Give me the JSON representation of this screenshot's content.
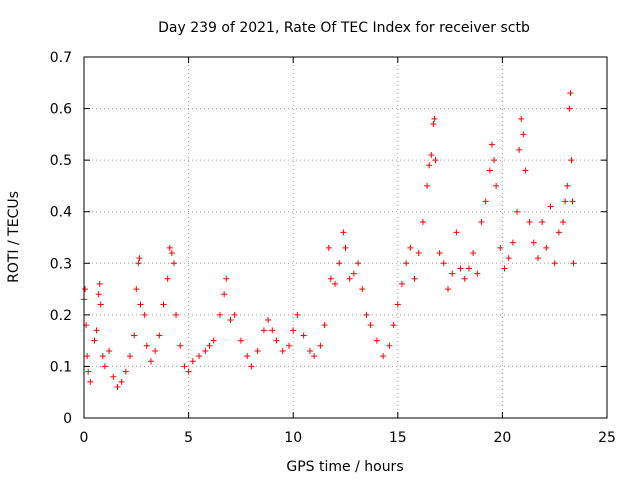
{
  "chart_data": {
    "type": "scatter",
    "title": "Day 239 of 2021, Rate Of TEC Index for receiver sctb",
    "xlabel": "GPS time / hours",
    "ylabel": "ROTI / TECUs",
    "xlim": [
      0,
      25
    ],
    "ylim": [
      0,
      0.7
    ],
    "x_ticks": [
      "0",
      "5",
      "10",
      "15",
      "20",
      "25"
    ],
    "y_ticks": [
      "0",
      "0.1",
      "0.2",
      "0.3",
      "0.4",
      "0.5",
      "0.6",
      "0.7"
    ],
    "grid": true,
    "marker": "plus",
    "color": "#ff0000",
    "series": [
      {
        "name": "ROTI",
        "points": [
          [
            0.0,
            0.23
          ],
          [
            0.05,
            0.25
          ],
          [
            0.1,
            0.18
          ],
          [
            0.15,
            0.12
          ],
          [
            0.2,
            0.09
          ],
          [
            0.3,
            0.07
          ],
          [
            0.5,
            0.15
          ],
          [
            0.6,
            0.17
          ],
          [
            0.7,
            0.24
          ],
          [
            0.75,
            0.26
          ],
          [
            0.8,
            0.22
          ],
          [
            0.9,
            0.12
          ],
          [
            1.0,
            0.1
          ],
          [
            1.2,
            0.13
          ],
          [
            1.4,
            0.08
          ],
          [
            1.6,
            0.06
          ],
          [
            1.8,
            0.07
          ],
          [
            2.0,
            0.09
          ],
          [
            2.2,
            0.12
          ],
          [
            2.4,
            0.16
          ],
          [
            2.5,
            0.25
          ],
          [
            2.6,
            0.3
          ],
          [
            2.65,
            0.31
          ],
          [
            2.7,
            0.22
          ],
          [
            2.9,
            0.2
          ],
          [
            3.0,
            0.14
          ],
          [
            3.2,
            0.11
          ],
          [
            3.4,
            0.13
          ],
          [
            3.6,
            0.16
          ],
          [
            3.8,
            0.22
          ],
          [
            4.0,
            0.27
          ],
          [
            4.1,
            0.33
          ],
          [
            4.2,
            0.32
          ],
          [
            4.3,
            0.3
          ],
          [
            4.4,
            0.2
          ],
          [
            4.6,
            0.14
          ],
          [
            4.8,
            0.1
          ],
          [
            5.0,
            0.09
          ],
          [
            5.2,
            0.11
          ],
          [
            5.5,
            0.12
          ],
          [
            5.8,
            0.13
          ],
          [
            6.0,
            0.14
          ],
          [
            6.2,
            0.15
          ],
          [
            6.5,
            0.2
          ],
          [
            6.7,
            0.24
          ],
          [
            6.8,
            0.27
          ],
          [
            7.0,
            0.19
          ],
          [
            7.2,
            0.2
          ],
          [
            7.5,
            0.15
          ],
          [
            7.8,
            0.12
          ],
          [
            8.0,
            0.1
          ],
          [
            8.3,
            0.13
          ],
          [
            8.6,
            0.17
          ],
          [
            8.8,
            0.19
          ],
          [
            9.0,
            0.17
          ],
          [
            9.2,
            0.15
          ],
          [
            9.5,
            0.13
          ],
          [
            9.8,
            0.14
          ],
          [
            10.0,
            0.17
          ],
          [
            10.2,
            0.2
          ],
          [
            10.5,
            0.16
          ],
          [
            10.8,
            0.13
          ],
          [
            11.0,
            0.12
          ],
          [
            11.3,
            0.14
          ],
          [
            11.5,
            0.18
          ],
          [
            11.7,
            0.33
          ],
          [
            11.8,
            0.27
          ],
          [
            12.0,
            0.26
          ],
          [
            12.2,
            0.3
          ],
          [
            12.4,
            0.36
          ],
          [
            12.5,
            0.33
          ],
          [
            12.7,
            0.27
          ],
          [
            12.9,
            0.28
          ],
          [
            13.1,
            0.3
          ],
          [
            13.3,
            0.25
          ],
          [
            13.5,
            0.2
          ],
          [
            13.7,
            0.18
          ],
          [
            14.0,
            0.15
          ],
          [
            14.3,
            0.12
          ],
          [
            14.6,
            0.14
          ],
          [
            14.8,
            0.18
          ],
          [
            15.0,
            0.22
          ],
          [
            15.2,
            0.26
          ],
          [
            15.4,
            0.3
          ],
          [
            15.6,
            0.33
          ],
          [
            15.8,
            0.27
          ],
          [
            16.0,
            0.32
          ],
          [
            16.2,
            0.38
          ],
          [
            16.4,
            0.45
          ],
          [
            16.5,
            0.49
          ],
          [
            16.6,
            0.51
          ],
          [
            16.7,
            0.57
          ],
          [
            16.75,
            0.58
          ],
          [
            16.8,
            0.5
          ],
          [
            17.0,
            0.32
          ],
          [
            17.2,
            0.3
          ],
          [
            17.4,
            0.25
          ],
          [
            17.6,
            0.28
          ],
          [
            17.8,
            0.36
          ],
          [
            18.0,
            0.29
          ],
          [
            18.2,
            0.27
          ],
          [
            18.4,
            0.29
          ],
          [
            18.6,
            0.32
          ],
          [
            18.8,
            0.28
          ],
          [
            19.0,
            0.38
          ],
          [
            19.2,
            0.42
          ],
          [
            19.4,
            0.48
          ],
          [
            19.5,
            0.53
          ],
          [
            19.6,
            0.5
          ],
          [
            19.7,
            0.45
          ],
          [
            19.9,
            0.33
          ],
          [
            20.1,
            0.29
          ],
          [
            20.3,
            0.31
          ],
          [
            20.5,
            0.34
          ],
          [
            20.7,
            0.4
          ],
          [
            20.8,
            0.52
          ],
          [
            20.9,
            0.58
          ],
          [
            21.0,
            0.55
          ],
          [
            21.1,
            0.48
          ],
          [
            21.3,
            0.38
          ],
          [
            21.5,
            0.34
          ],
          [
            21.7,
            0.31
          ],
          [
            21.9,
            0.38
          ],
          [
            22.1,
            0.33
          ],
          [
            22.3,
            0.41
          ],
          [
            22.5,
            0.3
          ],
          [
            22.7,
            0.36
          ],
          [
            22.9,
            0.38
          ],
          [
            23.0,
            0.42
          ],
          [
            23.1,
            0.45
          ],
          [
            23.2,
            0.6
          ],
          [
            23.25,
            0.63
          ],
          [
            23.3,
            0.5
          ],
          [
            23.35,
            0.42
          ],
          [
            23.4,
            0.3
          ]
        ]
      }
    ]
  }
}
